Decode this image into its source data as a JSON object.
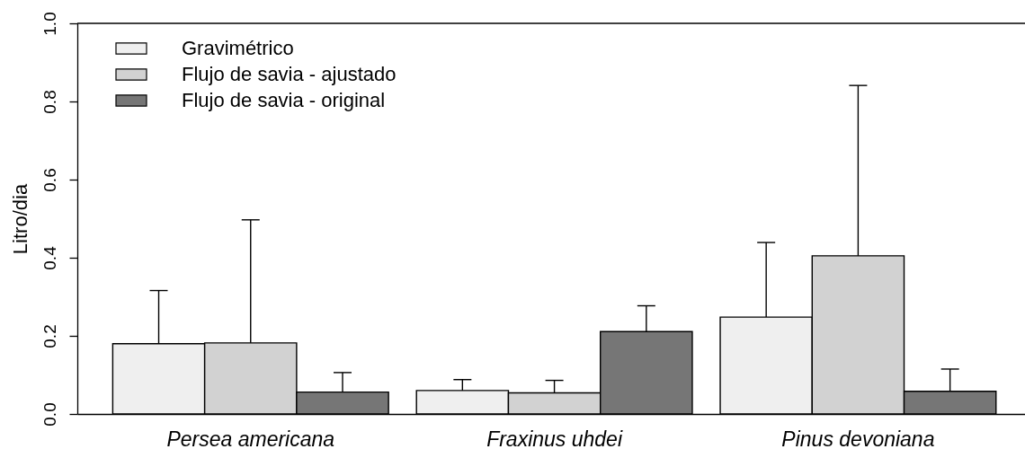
{
  "chart_data": {
    "type": "bar",
    "ylabel": "Litro/dia",
    "categories": [
      "Persea americana",
      "Fraxinus uhdei",
      "Pinus devoniana"
    ],
    "series": [
      {
        "name": "Gravimétrico",
        "color": "#efefef",
        "values": [
          0.18,
          0.06,
          0.248
        ],
        "errors": [
          [
            0.18,
            0.316
          ],
          [
            0.06,
            0.088
          ],
          [
            0.248,
            0.439
          ]
        ]
      },
      {
        "name": "Flujo de savia - ajustado",
        "color": "#d2d2d2",
        "values": [
          0.182,
          0.054,
          0.405
        ],
        "errors": [
          [
            0.182,
            0.497
          ],
          [
            0.054,
            0.086
          ],
          [
            0.405,
            0.841
          ]
        ]
      },
      {
        "name": "Flujo de savia - original",
        "color": "#767676",
        "values": [
          0.056,
          0.211,
          0.058
        ],
        "errors": [
          [
            0.056,
            0.106
          ],
          [
            0.211,
            0.277
          ],
          [
            0.058,
            0.115
          ]
        ]
      }
    ],
    "ylim": [
      0,
      1
    ],
    "yticks": [
      {
        "value": 0,
        "label": "0.0"
      },
      0.2,
      0.4,
      0.6,
      0.8,
      {
        "value": 1,
        "label": "1.0"
      }
    ],
    "legend": "top left",
    "ref_lines": [
      {
        "axis": "y",
        "value": 1
      }
    ]
  }
}
